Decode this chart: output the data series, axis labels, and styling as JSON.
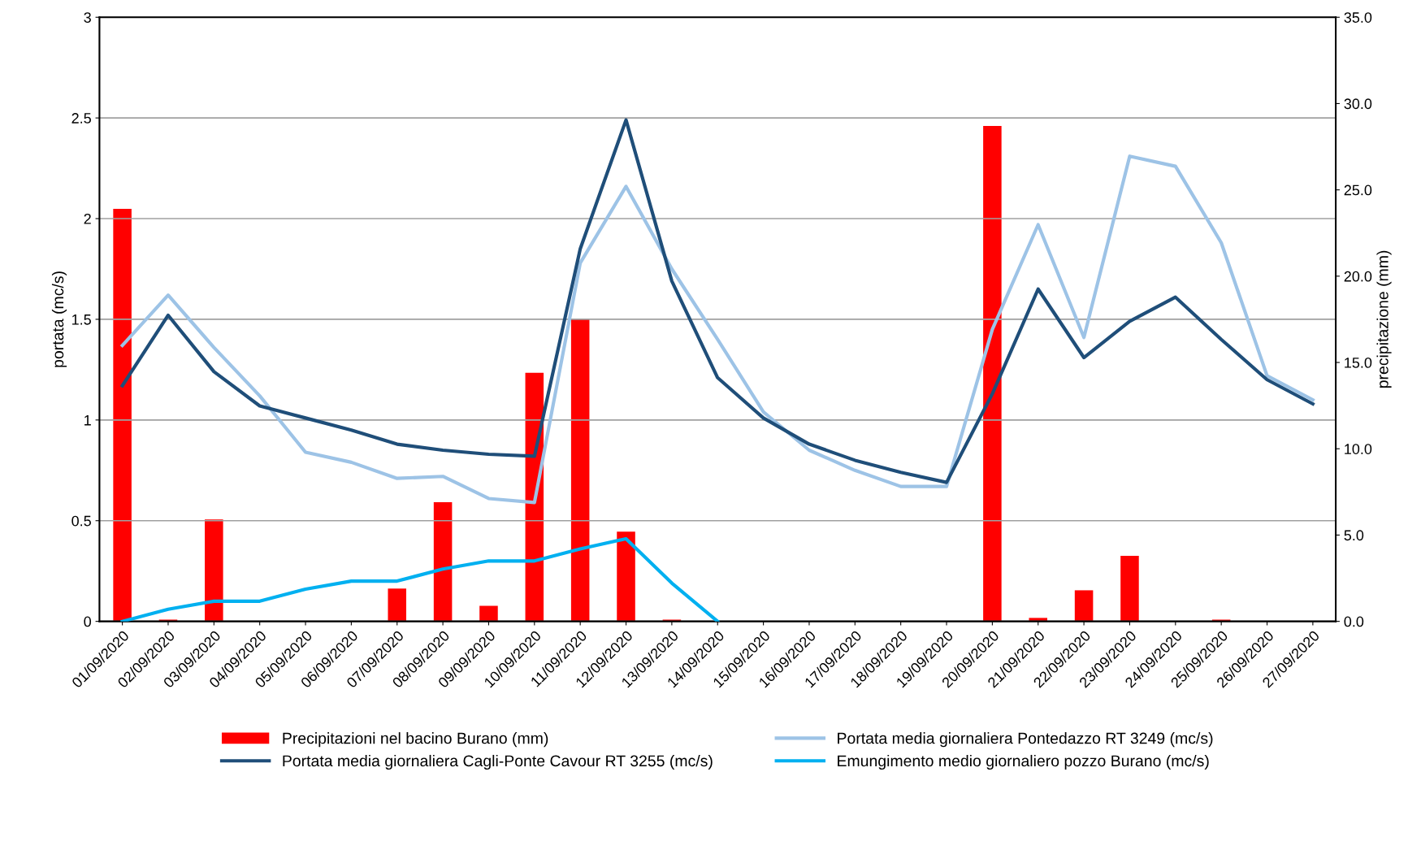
{
  "chart_data": {
    "type": "line",
    "ylabel": "portata (mc/s)",
    "y2label": "precipitazione (mm)",
    "categories": [
      "01/09/2020",
      "02/09/2020",
      "03/09/2020",
      "04/09/2020",
      "05/09/2020",
      "06/09/2020",
      "07/09/2020",
      "08/09/2020",
      "09/09/2020",
      "10/09/2020",
      "11/09/2020",
      "12/09/2020",
      "13/09/2020",
      "14/09/2020",
      "15/09/2020",
      "16/09/2020",
      "17/09/2020",
      "18/09/2020",
      "19/09/2020",
      "20/09/2020",
      "21/09/2020",
      "22/09/2020",
      "23/09/2020",
      "24/09/2020",
      "25/09/2020",
      "26/09/2020",
      "27/09/2020"
    ],
    "series": [
      {
        "name": "Precipitazioni nel bacino Burano (mm)",
        "type": "bar",
        "axis": "y2",
        "color": "#ff0000",
        "values": [
          23.9,
          0.1,
          5.9,
          0,
          0,
          0,
          1.9,
          6.9,
          0.9,
          14.4,
          17.5,
          5.2,
          0.1,
          0,
          0,
          0,
          0,
          0,
          0,
          28.7,
          0.2,
          1.8,
          3.8,
          0,
          0.1,
          0,
          0
        ]
      },
      {
        "name": "Portata media giornaliera Pontedazzo RT 3249 (mc/s)",
        "color": "#9dc3e6",
        "values": [
          1.37,
          1.62,
          1.36,
          1.12,
          0.84,
          0.79,
          0.71,
          0.72,
          0.61,
          0.59,
          1.78,
          2.16,
          1.75,
          1.4,
          1.04,
          0.85,
          0.75,
          0.67,
          0.67,
          1.45,
          1.97,
          1.41,
          2.31,
          2.26,
          1.88,
          1.22,
          1.1
        ]
      },
      {
        "name": "Portata media giornaliera Cagli-Ponte Cavour RT 3255 (mc/s)",
        "color": "#1f4e79",
        "values": [
          1.17,
          1.52,
          1.24,
          1.07,
          1.01,
          0.95,
          0.88,
          0.85,
          0.83,
          0.82,
          1.85,
          2.49,
          1.69,
          1.21,
          1.01,
          0.88,
          0.8,
          0.74,
          0.69,
          1.13,
          1.65,
          1.31,
          1.49,
          1.61,
          1.4,
          1.2,
          1.08
        ]
      },
      {
        "name": "Emungimento medio giornaliero pozzo Burano (mc/s)",
        "color": "#00b0f0",
        "values": [
          0,
          0.06,
          0.1,
          0.1,
          0.16,
          0.2,
          0.2,
          0.26,
          0.3,
          0.3,
          0.36,
          0.41,
          0.19,
          0,
          null,
          null,
          null,
          null,
          null,
          null,
          null,
          null,
          null,
          null,
          null,
          null,
          null
        ]
      }
    ],
    "ylim": [
      0,
      3
    ],
    "yticks": [
      0,
      0.5,
      1,
      1.5,
      2,
      2.5,
      3
    ],
    "y2lim": [
      0,
      35
    ],
    "y2ticks": [
      {
        "value": 0,
        "label": "0.0"
      },
      {
        "value": 5,
        "label": "5.0"
      },
      {
        "value": 10,
        "label": "10.0"
      },
      {
        "value": 15,
        "label": "15.0"
      },
      {
        "value": 20,
        "label": "20.0"
      },
      {
        "value": 25,
        "label": "25.0"
      },
      {
        "value": 30,
        "label": "30.0"
      },
      {
        "value": 35,
        "label": "35.0"
      }
    ],
    "grid": "y",
    "legend": "bottom",
    "marker": "none",
    "line_style": "solid"
  }
}
